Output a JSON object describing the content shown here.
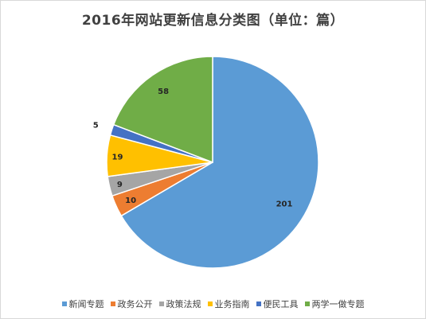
{
  "chart_data": {
    "type": "pie",
    "title": "2016年网站更新信息分类图（单位：篇）",
    "start_angle_deg": 0,
    "direction": "clockwise",
    "legend_position": "bottom",
    "slices": [
      {
        "name": "新闻专题",
        "value": 201,
        "color": "#5B9BD5"
      },
      {
        "name": "政务公开",
        "value": 10,
        "color": "#ED7D31"
      },
      {
        "name": "政策法规",
        "value": 9,
        "color": "#A5A5A5"
      },
      {
        "name": "业务指南",
        "value": 19,
        "color": "#FFC000"
      },
      {
        "name": "便民工具",
        "value": 5,
        "color": "#4472C4"
      },
      {
        "name": "两学一做专题",
        "value": 58,
        "color": "#70AD47"
      }
    ]
  }
}
